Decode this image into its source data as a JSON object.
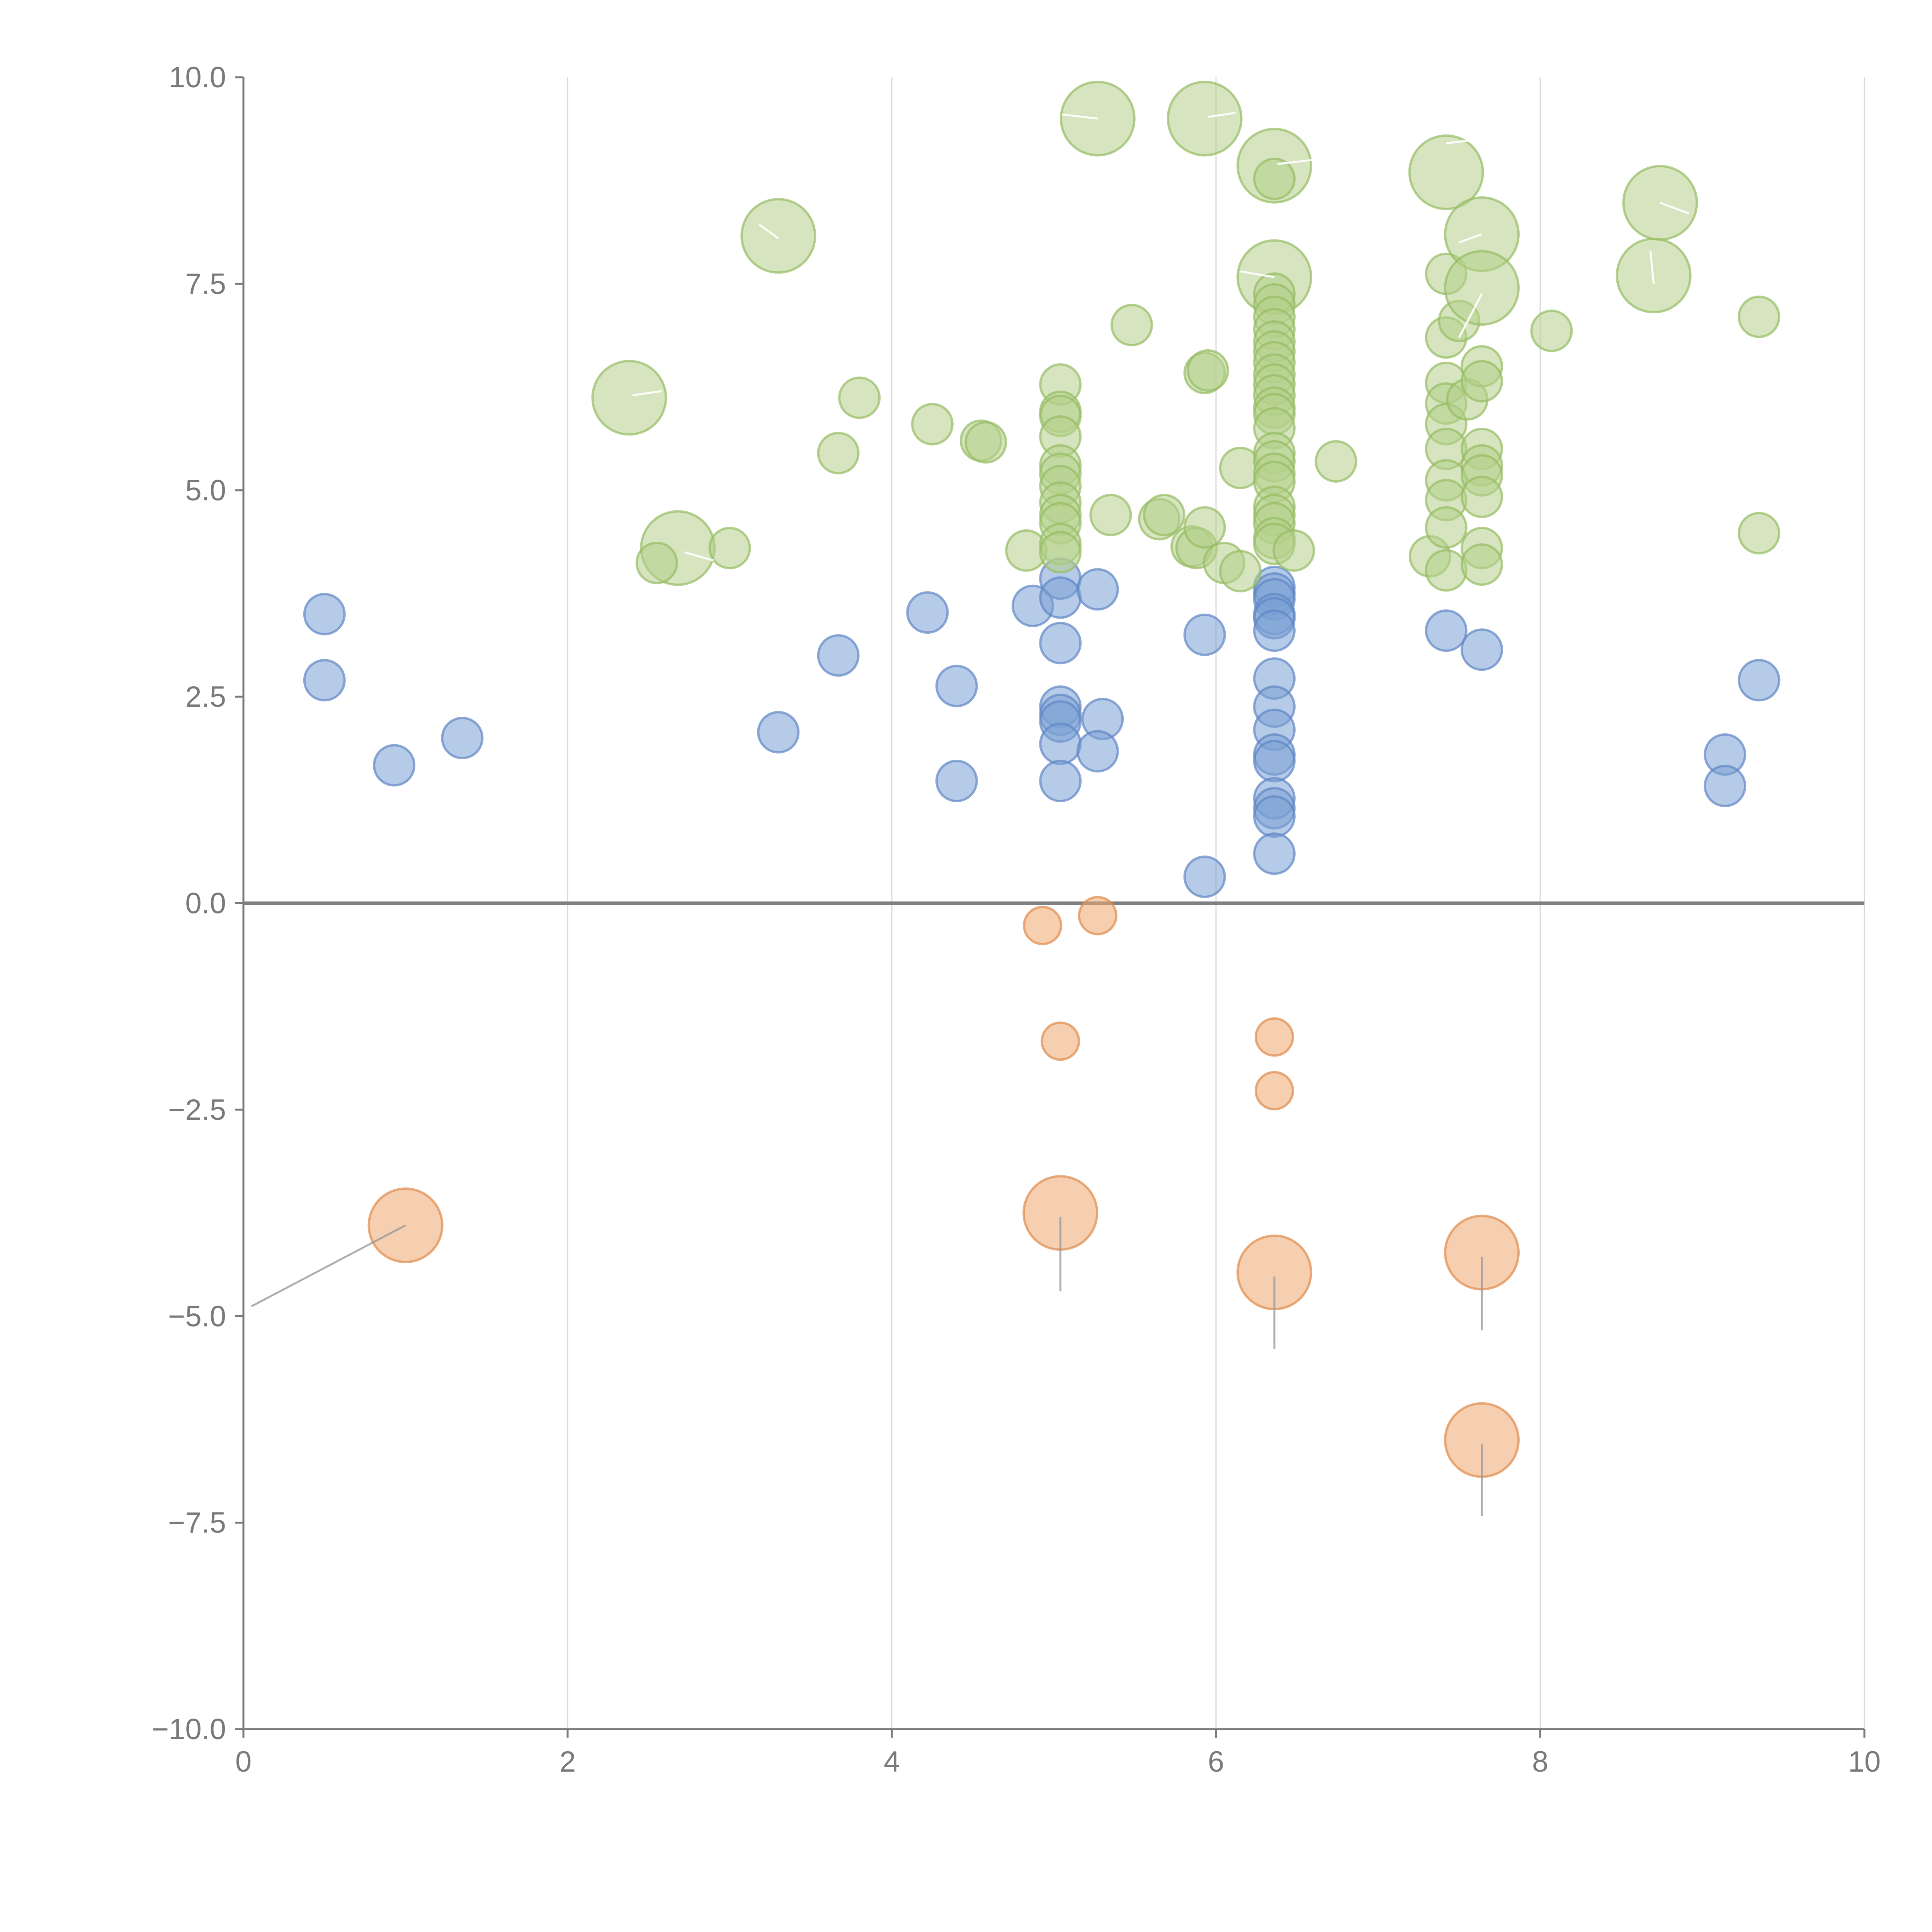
{
  "chart_data": {
    "type": "scatter",
    "title": "",
    "xlabel": "",
    "ylabel": "",
    "xlim": [
      0,
      10
    ],
    "ylim": [
      -10,
      10
    ],
    "x_ticks": [
      "0",
      "2",
      "4",
      "6",
      "8",
      "10"
    ],
    "y_ticks": [
      "10.0",
      "7.5",
      "5.0",
      "2.5",
      "0.0",
      "−2.5",
      "−5.0",
      "−7.5",
      "−10.0"
    ],
    "grid": "vertical",
    "zero_line": true,
    "colors": {
      "blue": "#7aa0d4",
      "green": "#b5d08a",
      "orange": "#eea870"
    },
    "series": [
      {
        "name": "blue",
        "color": "#7aa0d4",
        "edge": "#5f86c4",
        "points": [
          {
            "x": 0.5,
            "y": 3.5,
            "s": 1
          },
          {
            "x": 0.5,
            "y": 2.7,
            "s": 1
          },
          {
            "x": 0.93,
            "y": 1.67,
            "s": 1
          },
          {
            "x": 1.35,
            "y": 2.0,
            "s": 1
          },
          {
            "x": 3.3,
            "y": 2.07,
            "s": 1
          },
          {
            "x": 3.67,
            "y": 3.0,
            "s": 1
          },
          {
            "x": 4.22,
            "y": 3.52,
            "s": 1
          },
          {
            "x": 4.4,
            "y": 2.63,
            "s": 1
          },
          {
            "x": 4.4,
            "y": 1.48,
            "s": 1
          },
          {
            "x": 4.87,
            "y": 3.6,
            "s": 1
          },
          {
            "x": 5.04,
            "y": 3.93,
            "s": 1
          },
          {
            "x": 5.04,
            "y": 3.7,
            "s": 1
          },
          {
            "x": 5.04,
            "y": 3.15,
            "s": 1
          },
          {
            "x": 5.04,
            "y": 2.38,
            "s": 1
          },
          {
            "x": 5.04,
            "y": 2.28,
            "s": 1
          },
          {
            "x": 5.04,
            "y": 2.2,
            "s": 1
          },
          {
            "x": 5.04,
            "y": 1.93,
            "s": 1
          },
          {
            "x": 5.04,
            "y": 1.48,
            "s": 1
          },
          {
            "x": 5.27,
            "y": 3.8,
            "s": 1
          },
          {
            "x": 5.3,
            "y": 2.23,
            "s": 1
          },
          {
            "x": 5.27,
            "y": 1.84,
            "s": 1
          },
          {
            "x": 5.93,
            "y": 3.25,
            "s": 1
          },
          {
            "x": 5.93,
            "y": 0.32,
            "s": 1
          },
          {
            "x": 6.36,
            "y": 3.83,
            "s": 1
          },
          {
            "x": 6.36,
            "y": 3.75,
            "s": 1
          },
          {
            "x": 6.36,
            "y": 3.68,
            "s": 1
          },
          {
            "x": 6.36,
            "y": 3.5,
            "s": 1
          },
          {
            "x": 6.36,
            "y": 3.45,
            "s": 1
          },
          {
            "x": 6.36,
            "y": 3.3,
            "s": 1
          },
          {
            "x": 6.36,
            "y": 2.72,
            "s": 1
          },
          {
            "x": 6.36,
            "y": 2.38,
            "s": 1
          },
          {
            "x": 6.36,
            "y": 2.1,
            "s": 1
          },
          {
            "x": 6.36,
            "y": 1.8,
            "s": 1
          },
          {
            "x": 6.36,
            "y": 1.72,
            "s": 1
          },
          {
            "x": 6.36,
            "y": 1.27,
            "s": 1
          },
          {
            "x": 6.36,
            "y": 1.15,
            "s": 1
          },
          {
            "x": 6.36,
            "y": 1.05,
            "s": 1
          },
          {
            "x": 6.36,
            "y": 0.6,
            "s": 1
          },
          {
            "x": 7.42,
            "y": 3.3,
            "s": 1
          },
          {
            "x": 7.64,
            "y": 3.07,
            "s": 1
          },
          {
            "x": 9.14,
            "y": 1.8,
            "s": 1
          },
          {
            "x": 9.14,
            "y": 1.42,
            "s": 1
          },
          {
            "x": 9.35,
            "y": 2.7,
            "s": 1
          }
        ]
      },
      {
        "name": "green",
        "color": "#b5d08a",
        "edge": "#95bc62",
        "points": [
          {
            "x": 2.38,
            "y": 6.12,
            "s": 2
          },
          {
            "x": 2.68,
            "y": 4.3,
            "s": 2
          },
          {
            "x": 2.55,
            "y": 4.12,
            "s": 1
          },
          {
            "x": 3.0,
            "y": 4.3,
            "s": 1
          },
          {
            "x": 3.3,
            "y": 8.08,
            "s": 2
          },
          {
            "x": 3.67,
            "y": 5.45,
            "s": 1
          },
          {
            "x": 3.8,
            "y": 6.12,
            "s": 1
          },
          {
            "x": 4.25,
            "y": 5.8,
            "s": 1
          },
          {
            "x": 4.55,
            "y": 5.6,
            "s": 1
          },
          {
            "x": 4.58,
            "y": 5.58,
            "s": 1
          },
          {
            "x": 4.83,
            "y": 4.27,
            "s": 1
          },
          {
            "x": 5.04,
            "y": 6.28,
            "s": 1
          },
          {
            "x": 5.04,
            "y": 5.95,
            "s": 1
          },
          {
            "x": 5.04,
            "y": 5.9,
            "s": 1
          },
          {
            "x": 5.04,
            "y": 5.65,
            "s": 1
          },
          {
            "x": 5.04,
            "y": 5.3,
            "s": 1
          },
          {
            "x": 5.04,
            "y": 5.2,
            "s": 1
          },
          {
            "x": 5.04,
            "y": 5.05,
            "s": 1
          },
          {
            "x": 5.04,
            "y": 4.85,
            "s": 1
          },
          {
            "x": 5.04,
            "y": 4.7,
            "s": 1
          },
          {
            "x": 5.04,
            "y": 4.6,
            "s": 1
          },
          {
            "x": 5.04,
            "y": 4.35,
            "s": 1
          },
          {
            "x": 5.04,
            "y": 4.25,
            "s": 1
          },
          {
            "x": 5.27,
            "y": 9.5,
            "s": 2
          },
          {
            "x": 5.35,
            "y": 4.7,
            "s": 1
          },
          {
            "x": 5.48,
            "y": 7.0,
            "s": 1
          },
          {
            "x": 5.65,
            "y": 4.65,
            "s": 1
          },
          {
            "x": 5.68,
            "y": 4.7,
            "s": 1
          },
          {
            "x": 5.85,
            "y": 4.32,
            "s": 1
          },
          {
            "x": 5.88,
            "y": 4.3,
            "s": 1
          },
          {
            "x": 5.93,
            "y": 9.5,
            "s": 2
          },
          {
            "x": 5.93,
            "y": 6.42,
            "s": 1
          },
          {
            "x": 5.95,
            "y": 6.45,
            "s": 1
          },
          {
            "x": 5.93,
            "y": 4.55,
            "s": 1
          },
          {
            "x": 6.05,
            "y": 4.12,
            "s": 1
          },
          {
            "x": 6.15,
            "y": 5.27,
            "s": 1
          },
          {
            "x": 6.15,
            "y": 4.02,
            "s": 1
          },
          {
            "x": 6.36,
            "y": 8.93,
            "s": 2
          },
          {
            "x": 6.36,
            "y": 8.77,
            "s": 1
          },
          {
            "x": 6.36,
            "y": 7.58,
            "s": 2
          },
          {
            "x": 6.36,
            "y": 7.38,
            "s": 1
          },
          {
            "x": 6.36,
            "y": 7.25,
            "s": 1
          },
          {
            "x": 6.36,
            "y": 7.1,
            "s": 1
          },
          {
            "x": 6.36,
            "y": 6.95,
            "s": 1
          },
          {
            "x": 6.36,
            "y": 6.8,
            "s": 1
          },
          {
            "x": 6.36,
            "y": 6.68,
            "s": 1
          },
          {
            "x": 6.36,
            "y": 6.55,
            "s": 1
          },
          {
            "x": 6.36,
            "y": 6.4,
            "s": 1
          },
          {
            "x": 6.36,
            "y": 6.28,
            "s": 1
          },
          {
            "x": 6.36,
            "y": 6.15,
            "s": 1
          },
          {
            "x": 6.36,
            "y": 6.0,
            "s": 1
          },
          {
            "x": 6.36,
            "y": 5.92,
            "s": 1
          },
          {
            "x": 6.36,
            "y": 5.75,
            "s": 1
          },
          {
            "x": 6.36,
            "y": 5.45,
            "s": 1
          },
          {
            "x": 6.36,
            "y": 5.35,
            "s": 1
          },
          {
            "x": 6.36,
            "y": 5.2,
            "s": 1
          },
          {
            "x": 6.36,
            "y": 5.1,
            "s": 1
          },
          {
            "x": 6.36,
            "y": 4.8,
            "s": 1
          },
          {
            "x": 6.36,
            "y": 4.7,
            "s": 1
          },
          {
            "x": 6.36,
            "y": 4.6,
            "s": 1
          },
          {
            "x": 6.36,
            "y": 4.42,
            "s": 1
          },
          {
            "x": 6.36,
            "y": 4.35,
            "s": 1
          },
          {
            "x": 6.48,
            "y": 4.27,
            "s": 1
          },
          {
            "x": 6.74,
            "y": 5.35,
            "s": 1
          },
          {
            "x": 7.32,
            "y": 4.2,
            "s": 1
          },
          {
            "x": 7.42,
            "y": 8.85,
            "s": 2
          },
          {
            "x": 7.42,
            "y": 7.62,
            "s": 1
          },
          {
            "x": 7.42,
            "y": 6.85,
            "s": 1
          },
          {
            "x": 7.42,
            "y": 6.3,
            "s": 1
          },
          {
            "x": 7.42,
            "y": 6.05,
            "s": 1
          },
          {
            "x": 7.42,
            "y": 5.8,
            "s": 1
          },
          {
            "x": 7.42,
            "y": 5.5,
            "s": 1
          },
          {
            "x": 7.42,
            "y": 5.12,
            "s": 1
          },
          {
            "x": 7.42,
            "y": 4.88,
            "s": 1
          },
          {
            "x": 7.42,
            "y": 4.55,
            "s": 1
          },
          {
            "x": 7.42,
            "y": 4.03,
            "s": 1
          },
          {
            "x": 7.5,
            "y": 7.05,
            "s": 1
          },
          {
            "x": 7.55,
            "y": 6.1,
            "s": 1
          },
          {
            "x": 7.64,
            "y": 8.1,
            "s": 2
          },
          {
            "x": 7.64,
            "y": 7.45,
            "s": 2
          },
          {
            "x": 7.64,
            "y": 6.5,
            "s": 1
          },
          {
            "x": 7.64,
            "y": 6.32,
            "s": 1
          },
          {
            "x": 7.64,
            "y": 5.5,
            "s": 1
          },
          {
            "x": 7.64,
            "y": 5.3,
            "s": 1
          },
          {
            "x": 7.64,
            "y": 5.18,
            "s": 1
          },
          {
            "x": 7.64,
            "y": 4.92,
            "s": 1
          },
          {
            "x": 7.64,
            "y": 4.3,
            "s": 1
          },
          {
            "x": 7.64,
            "y": 4.1,
            "s": 1
          },
          {
            "x": 8.07,
            "y": 6.93,
            "s": 1
          },
          {
            "x": 8.7,
            "y": 7.6,
            "s": 2
          },
          {
            "x": 8.74,
            "y": 8.48,
            "s": 2
          },
          {
            "x": 9.35,
            "y": 7.1,
            "s": 1
          },
          {
            "x": 9.35,
            "y": 4.48,
            "s": 1
          }
        ]
      },
      {
        "name": "orange",
        "color": "#eea870",
        "edge": "#e08a4a",
        "points": [
          {
            "x": 1.0,
            "y": -3.9,
            "s": 2
          },
          {
            "x": 4.93,
            "y": -0.27,
            "s": 0.8
          },
          {
            "x": 5.27,
            "y": -0.15,
            "s": 0.8
          },
          {
            "x": 5.04,
            "y": -1.67,
            "s": 0.8
          },
          {
            "x": 5.04,
            "y": -3.75,
            "s": 2
          },
          {
            "x": 6.36,
            "y": -1.62,
            "s": 0.8
          },
          {
            "x": 6.36,
            "y": -2.27,
            "s": 0.8
          },
          {
            "x": 6.36,
            "y": -4.47,
            "s": 2
          },
          {
            "x": 7.64,
            "y": -4.23,
            "s": 2
          },
          {
            "x": 7.64,
            "y": -6.5,
            "s": 2
          }
        ]
      }
    ],
    "annotations": [
      {
        "kind": "gray",
        "x1": 1.0,
        "y1": -3.9,
        "x2": 0.05,
        "y2": -4.88
      },
      {
        "kind": "gray",
        "x1": 5.04,
        "y1": -3.8,
        "x2": 5.04,
        "y2": -4.7
      },
      {
        "kind": "gray",
        "x1": 6.36,
        "y1": -4.52,
        "x2": 6.36,
        "y2": -5.4
      },
      {
        "kind": "gray",
        "x1": 7.64,
        "y1": -4.28,
        "x2": 7.64,
        "y2": -5.17
      },
      {
        "kind": "gray",
        "x1": 7.64,
        "y1": -6.55,
        "x2": 7.64,
        "y2": -7.42
      },
      {
        "kind": "white",
        "x1": 2.4,
        "y1": 6.15,
        "x2": 2.58,
        "y2": 6.2
      },
      {
        "kind": "white",
        "x1": 2.72,
        "y1": 4.25,
        "x2": 2.9,
        "y2": 4.15
      },
      {
        "kind": "white",
        "x1": 3.3,
        "y1": 8.05,
        "x2": 3.18,
        "y2": 8.22
      },
      {
        "kind": "white",
        "x1": 5.27,
        "y1": 9.5,
        "x2": 5.05,
        "y2": 9.55
      },
      {
        "kind": "white",
        "x1": 5.95,
        "y1": 9.52,
        "x2": 6.12,
        "y2": 9.57
      },
      {
        "kind": "white",
        "x1": 6.38,
        "y1": 8.95,
        "x2": 6.6,
        "y2": 9.0
      },
      {
        "kind": "white",
        "x1": 6.36,
        "y1": 7.58,
        "x2": 6.15,
        "y2": 7.65
      },
      {
        "kind": "white",
        "x1": 7.42,
        "y1": 9.2,
        "x2": 7.62,
        "y2": 9.25
      },
      {
        "kind": "white",
        "x1": 7.64,
        "y1": 8.1,
        "x2": 7.5,
        "y2": 8.0
      },
      {
        "kind": "white",
        "x1": 7.64,
        "y1": 7.38,
        "x2": 7.5,
        "y2": 6.85
      },
      {
        "kind": "white",
        "x1": 8.74,
        "y1": 8.48,
        "x2": 8.92,
        "y2": 8.35
      },
      {
        "kind": "white",
        "x1": 8.7,
        "y1": 7.5,
        "x2": 8.68,
        "y2": 7.9
      }
    ]
  }
}
